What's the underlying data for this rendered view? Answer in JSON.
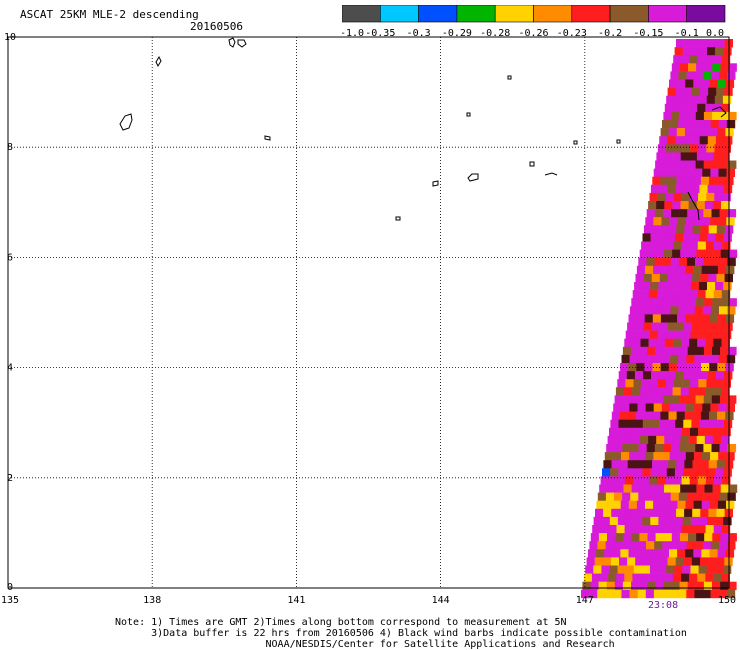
{
  "header": {
    "title": "ASCAT 25KM MLE-2 descending",
    "date": "20160506"
  },
  "colorbar": {
    "segments": [
      {
        "color": "#4d4d4d"
      },
      {
        "color": "#00c8ff"
      },
      {
        "color": "#0050ff"
      },
      {
        "color": "#00b400"
      },
      {
        "color": "#ffd200"
      },
      {
        "color": "#ff8c00"
      },
      {
        "color": "#ff1e1e"
      },
      {
        "color": "#8b5a2b"
      },
      {
        "color": "#d81bd8"
      },
      {
        "color": "#7a0aa0"
      }
    ],
    "tick_labels": [
      "-1.0",
      "-0.35",
      "-0.3",
      "-0.29",
      "-0.28",
      "-0.26",
      "-0.23",
      "-0.2",
      "-0.15",
      "-0.1",
      "0.0"
    ]
  },
  "map": {
    "lon_range": [
      135,
      150
    ],
    "lat_range": [
      0,
      10
    ],
    "x_ticks": [
      "135",
      "138",
      "141",
      "144",
      "147",
      "150"
    ],
    "y_ticks": [
      "0",
      "2",
      "4",
      "6",
      "8",
      "10"
    ],
    "time_label": "23:08",
    "swath_colors": {
      "yellow": "#ffd200",
      "orange": "#ff8c00",
      "red": "#ff1e1e",
      "brown": "#8b5a2b",
      "darkbrown": "#4a1414",
      "magenta": "#d81bd8",
      "green": "#00b400",
      "blue": "#0050ff"
    }
  },
  "notes": {
    "line1": "Note: 1) Times are GMT 2)Times along bottom correspond to measurement at 5N",
    "line2": "      3)Data buffer is 22 hrs from 20160506 4) Black wind barbs indicate possible contamination",
    "line3": "                         NOAA/NESDIS/Center for Satellite Applications and Research"
  }
}
